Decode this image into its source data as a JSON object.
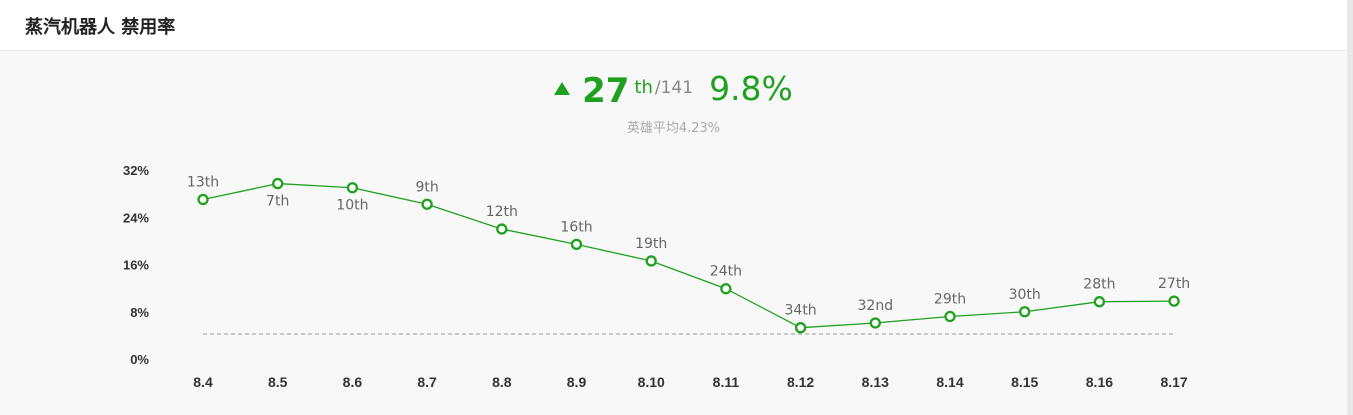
{
  "header": {
    "title": "蒸汽机器人 禁用率"
  },
  "summary": {
    "trend_icon": "up-triangle-icon",
    "rank": "27",
    "rank_suffix": "th",
    "rank_total": "/141",
    "rate": "9.8%",
    "avg_text": "英雄平均4.23%"
  },
  "colors": {
    "accent": "#1fa11f",
    "avg_line": "#999999",
    "text_muted": "#aaaaaa"
  },
  "chart_data": {
    "type": "line",
    "x": [
      "8.4",
      "8.5",
      "8.6",
      "8.7",
      "8.8",
      "8.9",
      "8.10",
      "8.11",
      "8.12",
      "8.13",
      "8.14",
      "8.15",
      "8.16",
      "8.17"
    ],
    "series": [
      {
        "values": [
          27.0,
          29.7,
          29.0,
          26.2,
          22.0,
          19.4,
          16.6,
          11.9,
          5.3,
          6.1,
          7.2,
          8.0,
          9.7,
          9.8
        ],
        "labels": [
          "13th",
          "7th",
          "10th",
          "9th",
          "12th",
          "16th",
          "19th",
          "24th",
          "34th",
          "32nd",
          "29th",
          "30th",
          "28th",
          "27th"
        ]
      }
    ],
    "average": 4.23,
    "yticks": [
      "32%",
      "24%",
      "16%",
      "8%",
      "0%"
    ],
    "ylim": [
      0,
      32
    ],
    "grid": false,
    "legend": "none"
  }
}
